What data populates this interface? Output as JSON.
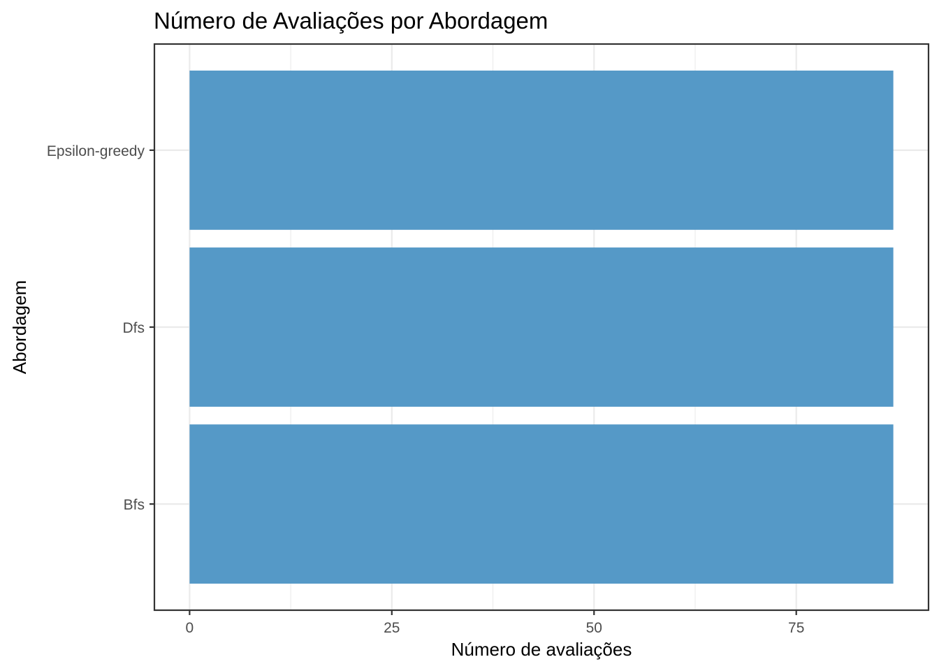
{
  "chart_data": {
    "type": "bar",
    "orientation": "horizontal",
    "title": "Número de Avaliações por Abordagem",
    "xlabel": "Número de avaliações",
    "ylabel": "Abordagem",
    "categories": [
      "Bfs",
      "Dfs",
      "Epsilon-greedy"
    ],
    "values": [
      87,
      87,
      87
    ],
    "xlim": [
      -4.35,
      91.35
    ],
    "x_ticks": [
      0,
      25,
      50,
      75
    ],
    "x_tick_labels": [
      "0",
      "25",
      "50",
      "75"
    ],
    "grid": true,
    "legend": "none",
    "bar_color": "#5599C7"
  }
}
